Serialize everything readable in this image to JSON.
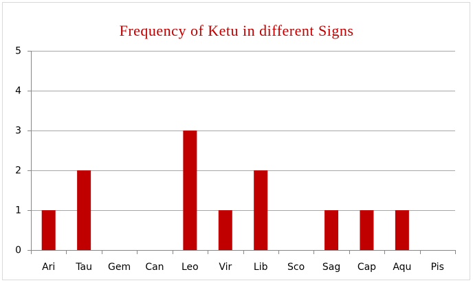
{
  "chart_data": {
    "type": "bar",
    "title": "Frequency of Ketu in different Signs",
    "categories": [
      "Ari",
      "Tau",
      "Gem",
      "Can",
      "Leo",
      "Vir",
      "Lib",
      "Sco",
      "Sag",
      "Cap",
      "Aqu",
      "Pis"
    ],
    "values": [
      1,
      2,
      0,
      0,
      3,
      1,
      2,
      0,
      1,
      1,
      1,
      0
    ],
    "color": "#c00000",
    "title_color": "#c00000",
    "ylim": [
      0,
      5
    ],
    "yticks": [
      0,
      1,
      2,
      3,
      4,
      5
    ],
    "grid": true
  }
}
